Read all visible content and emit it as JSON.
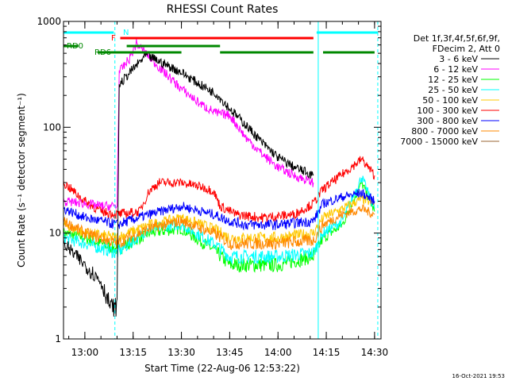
{
  "chart_data": {
    "type": "line",
    "title": "RHESSI Count Rates",
    "xlabel": "Start Time (22-Aug-06 12:53:22)",
    "ylabel": "Count Rate (s⁻¹ detector segment⁻¹)",
    "y_scale": "log",
    "ylim": [
      1,
      1000
    ],
    "y_ticks": [
      1,
      10,
      100,
      1000
    ],
    "y_tick_labels": [
      "1",
      "10",
      "100",
      "1000"
    ],
    "xlim": [
      "12:53:22",
      "14:32:00"
    ],
    "x_ticks": [
      "13:00",
      "13:15",
      "13:30",
      "13:45",
      "14:00",
      "14:15",
      "14:30"
    ],
    "grid": false,
    "legend_position": "right",
    "legend_header": [
      "Det 1f,3f,4f,5f,6f,9f,",
      "FDecim 2, Att 0"
    ],
    "footer_timestamp": "16-Oct-2021 19:53",
    "series": [
      {
        "name": "3 - 6 keV",
        "color": "#000000",
        "x": [
          "12:53:22",
          "13:00",
          "13:05",
          "13:08",
          "13:10",
          "13:10:40",
          "13:14",
          "13:19",
          "13:23",
          "13:30",
          "13:36",
          "13:41",
          "13:45",
          "13:50",
          "13:55",
          "14:00",
          "14:05",
          "14:11"
        ],
        "values": [
          8,
          5,
          3.5,
          2,
          2,
          250,
          330,
          480,
          420,
          330,
          250,
          205,
          150,
          105,
          72,
          52,
          42,
          35
        ]
      },
      {
        "name": "6 - 12 keV",
        "color": "#ff00ff",
        "x": [
          "12:53:22",
          "13:00",
          "13:05",
          "13:10",
          "13:10:40",
          "13:14",
          "13:16",
          "13:19",
          "13:23",
          "13:30",
          "13:36",
          "13:41",
          "13:45",
          "13:50",
          "13:55",
          "14:00",
          "14:05",
          "14:11"
        ],
        "values": [
          20,
          19,
          18,
          18,
          330,
          450,
          620,
          500,
          370,
          230,
          165,
          135,
          130,
          80,
          56,
          42,
          35,
          30
        ]
      },
      {
        "name": "12 - 25 keV",
        "color": "#00ff00",
        "x": [
          "12:53:22",
          "13:00",
          "13:10",
          "13:20",
          "13:30",
          "13:40",
          "13:45",
          "13:50",
          "14:00",
          "14:11",
          "14:14",
          "14:20",
          "14:26",
          "14:30"
        ],
        "values": [
          10,
          9,
          7,
          10,
          11,
          7,
          5,
          5,
          5,
          6,
          9,
          12,
          30,
          16
        ]
      },
      {
        "name": "25 - 50 keV",
        "color": "#00ffff",
        "x": [
          "12:53:22",
          "13:00",
          "13:10",
          "13:20",
          "13:30",
          "13:40",
          "13:45",
          "13:50",
          "14:00",
          "14:11",
          "14:14",
          "14:20",
          "14:26",
          "14:30"
        ],
        "values": [
          9,
          8,
          6.5,
          11,
          12,
          8,
          6,
          6,
          6,
          6.5,
          10,
          13,
          34,
          17
        ]
      },
      {
        "name": "50 - 100 keV",
        "color": "#ffc800",
        "x": [
          "12:53:22",
          "13:00",
          "13:10",
          "13:20",
          "13:30",
          "13:40",
          "13:45",
          "13:50",
          "14:00",
          "14:11",
          "14:14",
          "14:20",
          "14:26",
          "14:30"
        ],
        "values": [
          12,
          10,
          9,
          12,
          14,
          11,
          9,
          9,
          9,
          10,
          14,
          17,
          21,
          19
        ]
      },
      {
        "name": "100 - 300 keV",
        "color": "#ff0000",
        "x": [
          "12:53:22",
          "13:00",
          "13:05",
          "13:10",
          "13:17",
          "13:20",
          "13:23",
          "13:30",
          "13:37",
          "13:40",
          "13:42",
          "13:47",
          "13:55",
          "14:05",
          "14:11",
          "14:14",
          "14:20",
          "14:26",
          "14:30"
        ],
        "values": [
          30,
          20,
          16,
          15,
          16,
          25,
          30,
          30,
          27,
          25,
          18,
          15,
          14,
          15,
          19,
          26,
          36,
          50,
          35
        ]
      },
      {
        "name": "300 - 800 keV",
        "color": "#0000ff",
        "x": [
          "12:53:22",
          "13:00",
          "13:10",
          "13:20",
          "13:30",
          "13:40",
          "13:45",
          "13:50",
          "14:00",
          "14:11",
          "14:14",
          "14:20",
          "14:26",
          "14:30"
        ],
        "values": [
          17,
          14,
          12,
          15,
          18,
          15,
          13,
          12,
          12,
          13,
          19,
          22,
          24,
          20
        ]
      },
      {
        "name": "800 - 7000 keV",
        "color": "#ff8800",
        "x": [
          "12:53:22",
          "13:00",
          "13:10",
          "13:20",
          "13:30",
          "13:40",
          "13:45",
          "13:50",
          "14:00",
          "14:11",
          "14:14",
          "14:20",
          "14:26",
          "14:30"
        ],
        "values": [
          13,
          10,
          8,
          11,
          13,
          10,
          8,
          8,
          8,
          8.5,
          12,
          15,
          17,
          15
        ]
      },
      {
        "name": "7000 - 15000 keV",
        "color": "#996633",
        "x": [],
        "values": []
      }
    ],
    "annotations": {
      "flags": [
        {
          "label": "N",
          "color": "#00ffff",
          "segments": [
            [
              "12:53:22",
              "13:09"
            ],
            [
              "14:12",
              "14:31"
            ]
          ]
        },
        {
          "label": "F",
          "color": "#ff0000",
          "segments": [
            [
              "13:11",
              "14:11"
            ]
          ]
        },
        {
          "label": "RD0",
          "color": "#008800",
          "segments": [
            [
              "12:53:22",
              "12:58"
            ],
            [
              "13:13",
              "13:42"
            ]
          ]
        },
        {
          "label": "RD6",
          "color": "#008800",
          "segments": [
            [
              "13:04",
              "13:30"
            ],
            [
              "13:42",
              "14:11"
            ],
            [
              "14:14",
              "14:30"
            ]
          ]
        }
      ],
      "attenuator_lines": [
        {
          "time": "12:53:22",
          "color": "#00ffff",
          "style": "solid"
        },
        {
          "time": "13:09:20",
          "color": "#00ffff",
          "style": "dashed"
        },
        {
          "time": "14:12:30",
          "color": "#00ffff",
          "style": "solid"
        },
        {
          "time": "14:31:00",
          "color": "#00ffff",
          "style": "dashed"
        }
      ]
    }
  }
}
